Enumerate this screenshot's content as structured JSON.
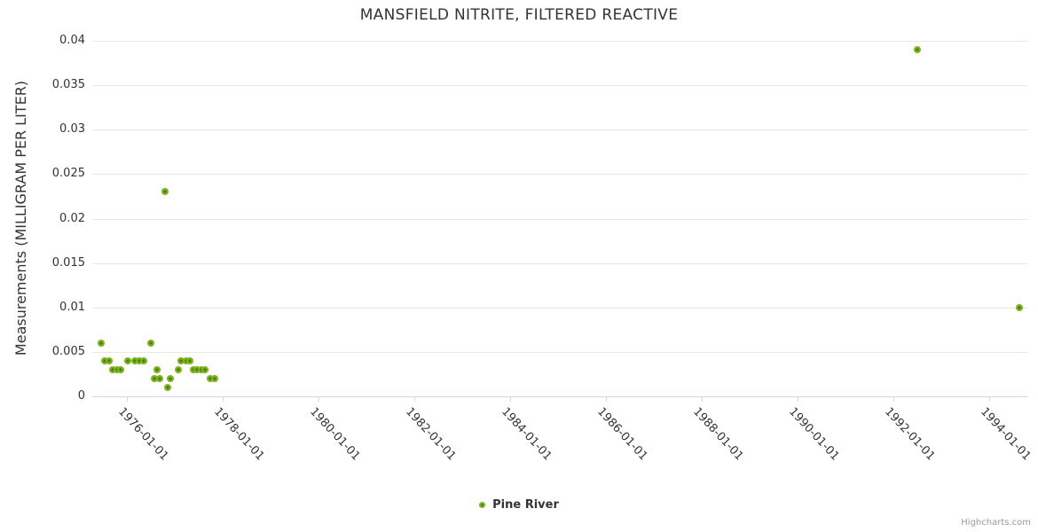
{
  "credits": {
    "label": "Highcharts.com"
  },
  "chart_data": {
    "type": "scatter",
    "title": "MANSFIELD NITRITE, FILTERED REACTIVE",
    "xlabel": "",
    "ylabel": "Measurements (MILLIGRAM PER LITER)",
    "legend_position": "bottom-center",
    "grid": "horizontal",
    "ylim": [
      0,
      0.04
    ],
    "y_tick_step": 0.005,
    "y_ticks": [
      {
        "value": 0,
        "label": "0"
      },
      {
        "value": 0.005,
        "label": "0.005"
      },
      {
        "value": 0.01,
        "label": "0.01"
      },
      {
        "value": 0.015,
        "label": "0.015"
      },
      {
        "value": 0.02,
        "label": "0.02"
      },
      {
        "value": 0.025,
        "label": "0.025"
      },
      {
        "value": 0.03,
        "label": "0.03"
      },
      {
        "value": 0.035,
        "label": "0.035"
      },
      {
        "value": 0.04,
        "label": "0.04"
      }
    ],
    "x_range_decimal_years": [
      1975.278,
      1994.796
    ],
    "x_ticks": [
      {
        "decimal_year": 1976,
        "label": "1976-01-01"
      },
      {
        "decimal_year": 1978,
        "label": "1978-01-01"
      },
      {
        "decimal_year": 1980,
        "label": "1980-01-01"
      },
      {
        "decimal_year": 1982,
        "label": "1982-01-01"
      },
      {
        "decimal_year": 1984,
        "label": "1984-01-01"
      },
      {
        "decimal_year": 1986,
        "label": "1986-01-01"
      },
      {
        "decimal_year": 1988,
        "label": "1988-01-01"
      },
      {
        "decimal_year": 1990,
        "label": "1990-01-01"
      },
      {
        "decimal_year": 1992,
        "label": "1992-01-01"
      },
      {
        "decimal_year": 1994,
        "label": "1994-01-01"
      }
    ],
    "series": [
      {
        "name": "Pine River",
        "marker_color": "#7cb320",
        "marker_core_color": "#4b7e04",
        "points": [
          [
            "1975-06-15",
            0.006
          ],
          [
            "1975-07-15",
            0.004
          ],
          [
            "1975-08-15",
            0.004
          ],
          [
            "1975-09-15",
            0.003
          ],
          [
            "1975-10-15",
            0.003
          ],
          [
            "1975-11-15",
            0.003
          ],
          [
            "1976-01-10",
            0.004
          ],
          [
            "1976-03-01",
            0.004
          ],
          [
            "1976-04-05",
            0.004
          ],
          [
            "1976-05-10",
            0.004
          ],
          [
            "1976-07-01",
            0.006
          ],
          [
            "1976-07-25",
            0.002
          ],
          [
            "1976-08-20",
            0.003
          ],
          [
            "1976-09-05",
            0.002
          ],
          [
            "1976-10-15",
            0.023
          ],
          [
            "1976-11-10",
            0.001
          ],
          [
            "1976-12-01",
            0.002
          ],
          [
            "1977-01-25",
            0.003
          ],
          [
            "1977-02-20",
            0.004
          ],
          [
            "1977-03-25",
            0.004
          ],
          [
            "1977-04-25",
            0.004
          ],
          [
            "1977-05-20",
            0.003
          ],
          [
            "1977-06-20",
            0.003
          ],
          [
            "1977-07-20",
            0.003
          ],
          [
            "1977-08-20",
            0.003
          ],
          [
            "1977-09-25",
            0.002
          ],
          [
            "1977-10-30",
            0.002
          ],
          [
            "1992-07-01",
            0.039
          ],
          [
            "1994-08-15",
            0.01
          ]
        ]
      }
    ],
    "colors": {
      "axis_line": "#ccd6eb",
      "grid_line": "#e6e6e6",
      "text": "#333333",
      "credits_text": "#999999"
    }
  }
}
